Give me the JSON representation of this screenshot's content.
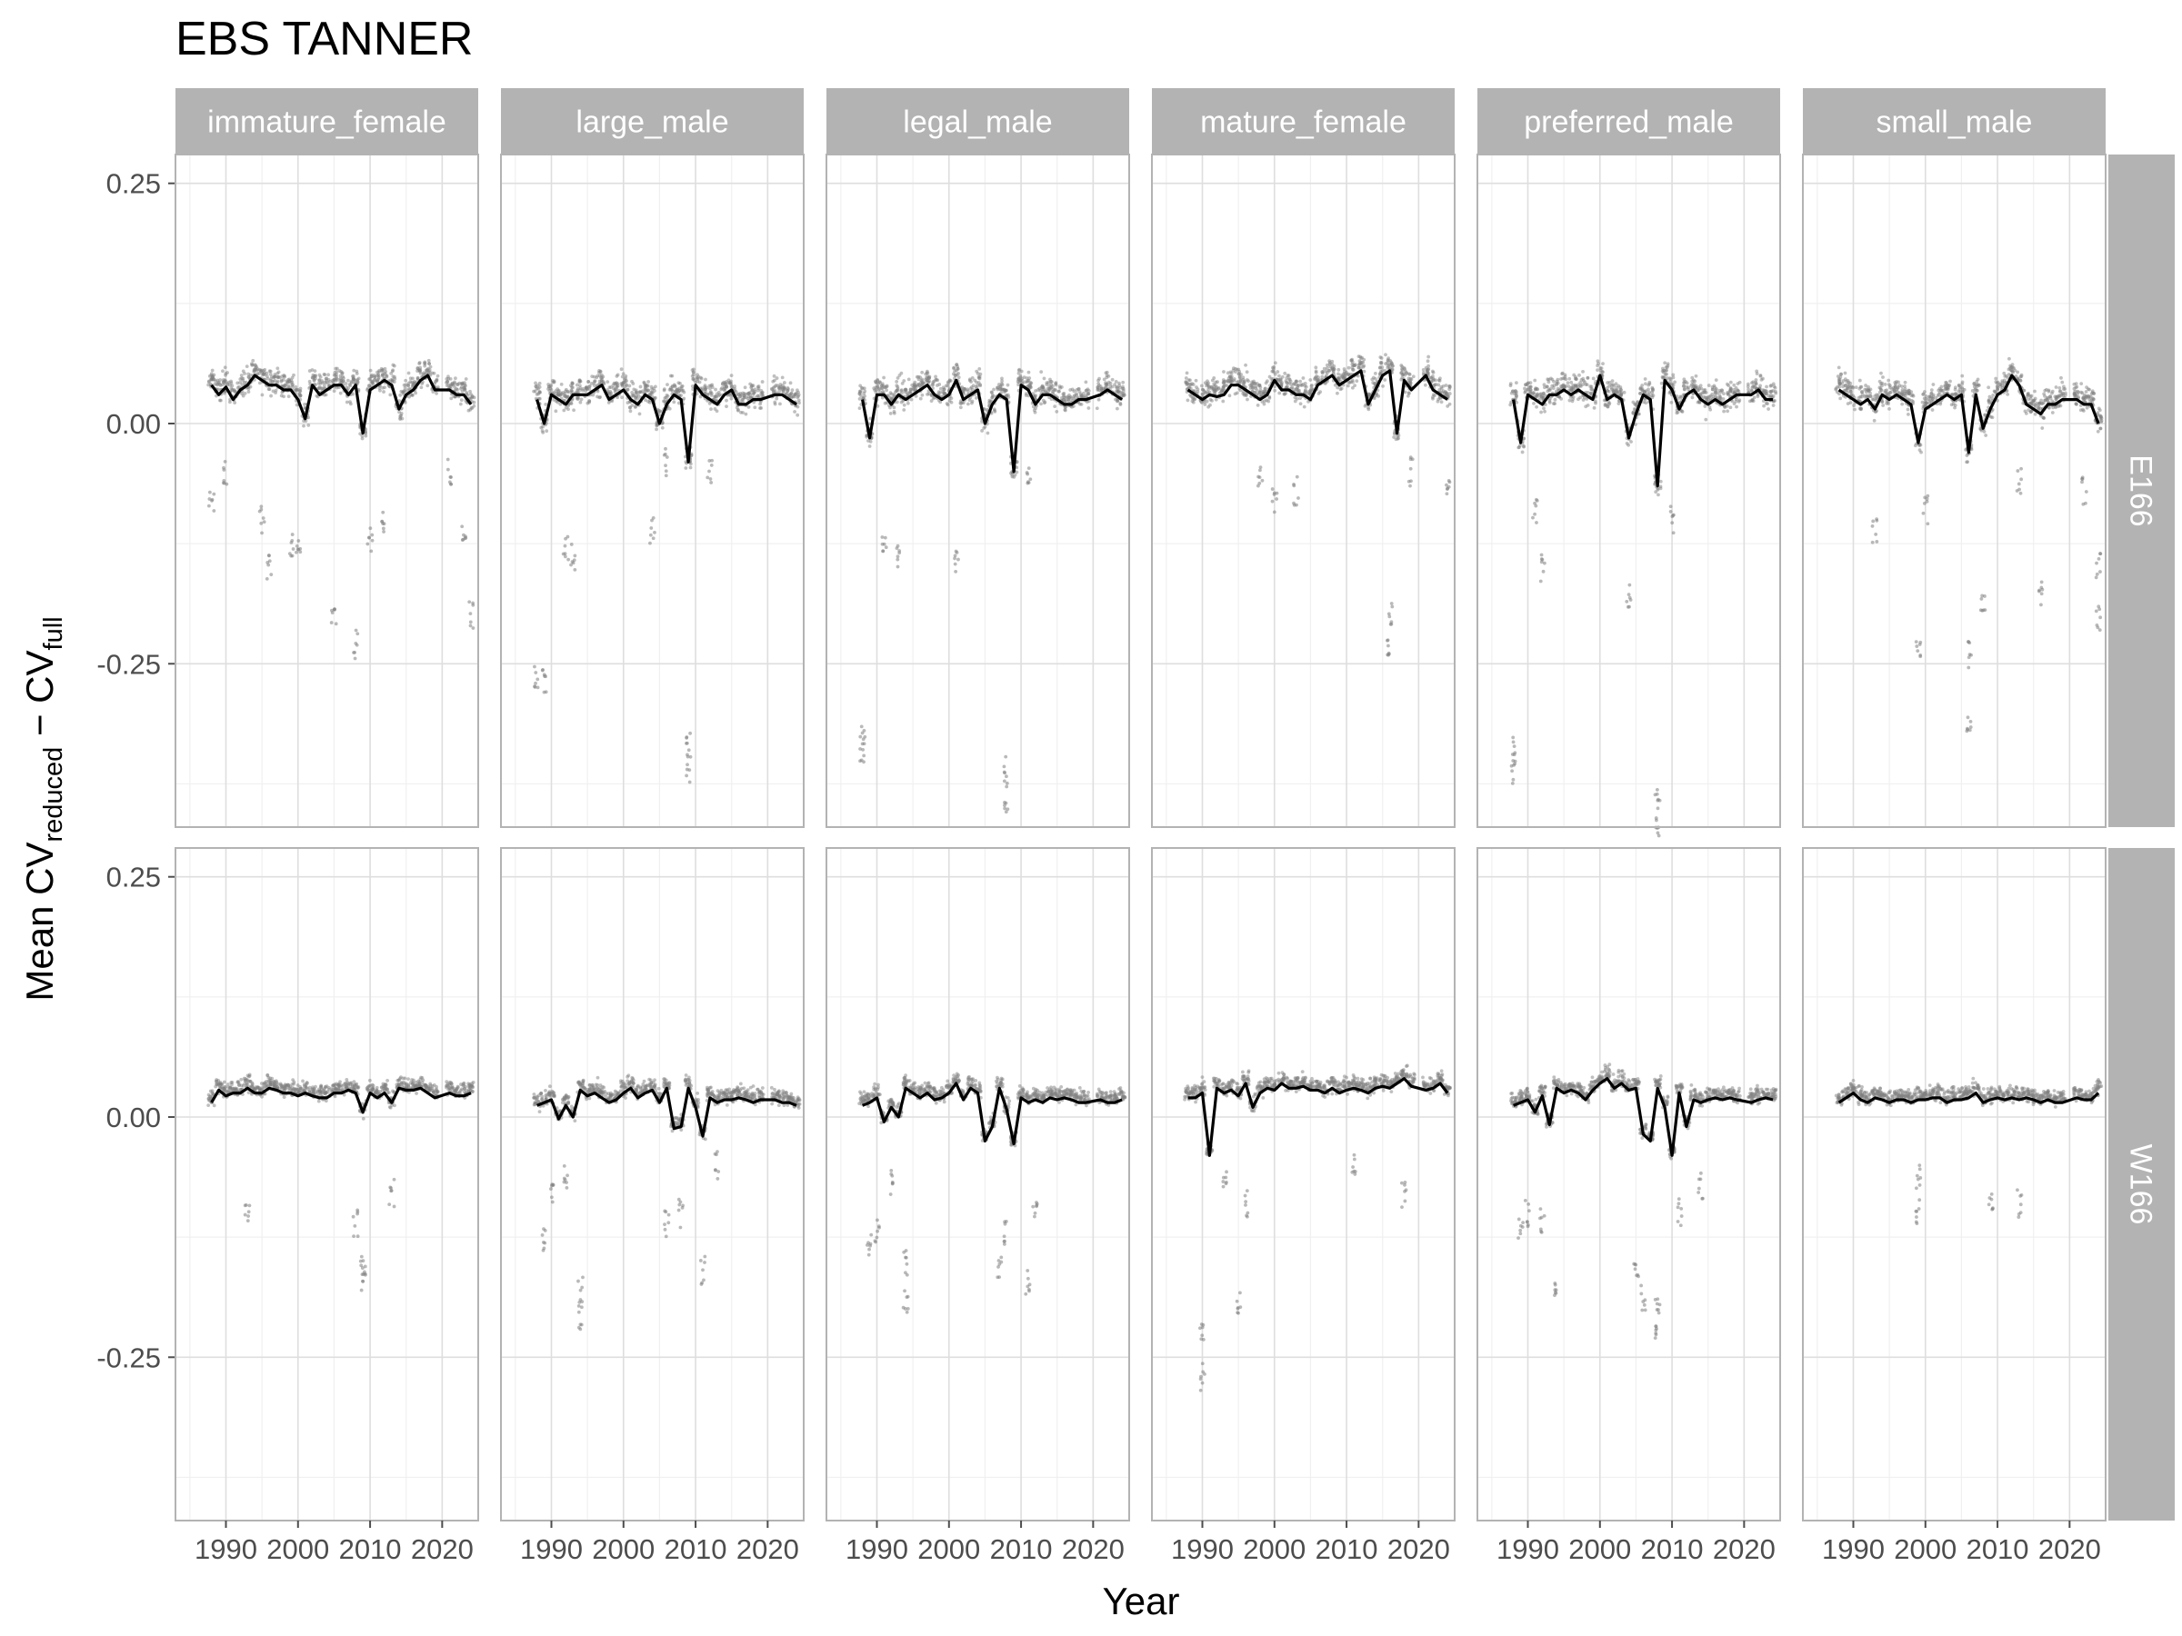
{
  "chart_data": {
    "type": "scatter",
    "title": "EBS TANNER",
    "xlabel": "Year",
    "ylabel": {
      "prefix": "Mean CV",
      "sub1": "reduced",
      "mid": " − CV",
      "sub2": "full"
    },
    "xlim": [
      1983,
      2025
    ],
    "ylim": [
      -0.42,
      0.28
    ],
    "x_ticks": [
      1990,
      2000,
      2010,
      2020
    ],
    "x_tick_labels": [
      "1990",
      "2000",
      "2010",
      "2020"
    ],
    "y_ticks": [
      0.25,
      0.0,
      -0.25
    ],
    "y_tick_labels": [
      "0.25",
      "0.00",
      "-0.25"
    ],
    "grid": true,
    "layout": "facet grid: columns = size class, rows = region",
    "columns": [
      "immature_female",
      "large_male",
      "legal_male",
      "mature_female",
      "preferred_male",
      "small_male"
    ],
    "rows": [
      "E166",
      "W166"
    ],
    "years": [
      1988,
      1989,
      1990,
      1991,
      1992,
      1993,
      1994,
      1995,
      1996,
      1997,
      1998,
      1999,
      2000,
      2001,
      2002,
      2003,
      2004,
      2005,
      2006,
      2007,
      2008,
      2009,
      2010,
      2011,
      2012,
      2013,
      2014,
      2015,
      2016,
      2017,
      2018,
      2019,
      2021,
      2022,
      2023,
      2024
    ],
    "series": [
      {
        "row": "E166",
        "col": "immature_female",
        "mean": [
          0.04,
          0.03,
          0.038,
          0.025,
          0.035,
          0.04,
          0.05,
          0.045,
          0.04,
          0.04,
          0.035,
          0.035,
          0.025,
          0.005,
          0.04,
          0.03,
          0.035,
          0.04,
          0.04,
          0.03,
          0.04,
          -0.01,
          0.035,
          0.04,
          0.045,
          0.04,
          0.015,
          0.03,
          0.035,
          0.045,
          0.05,
          0.035,
          0.035,
          0.03,
          0.03,
          0.02
        ],
        "outliers": [
          [
            1988,
            -0.08
          ],
          [
            1990,
            -0.05
          ],
          [
            1995,
            -0.1
          ],
          [
            1996,
            -0.15
          ],
          [
            1999,
            -0.13
          ],
          [
            2000,
            -0.13
          ],
          [
            2005,
            -0.2
          ],
          [
            2008,
            -0.23
          ],
          [
            2010,
            -0.12
          ],
          [
            2012,
            -0.1
          ],
          [
            2021,
            -0.05
          ],
          [
            2023,
            -0.12
          ],
          [
            2024,
            -0.2
          ]
        ]
      },
      {
        "row": "E166",
        "col": "large_male",
        "mean": [
          0.025,
          0.0,
          0.03,
          0.025,
          0.02,
          0.03,
          0.03,
          0.03,
          0.035,
          0.04,
          0.025,
          0.03,
          0.035,
          0.025,
          0.02,
          0.03,
          0.025,
          0.0,
          0.02,
          0.03,
          0.025,
          -0.04,
          0.04,
          0.03,
          0.025,
          0.02,
          0.03,
          0.035,
          0.02,
          0.02,
          0.025,
          0.025,
          0.03,
          0.03,
          0.025,
          0.02
        ],
        "outliers": [
          [
            1988,
            -0.26
          ],
          [
            1989,
            -0.27
          ],
          [
            1992,
            -0.13
          ],
          [
            1993,
            -0.14
          ],
          [
            2004,
            -0.11
          ],
          [
            2006,
            -0.04
          ],
          [
            2009,
            -0.33
          ],
          [
            2009,
            -0.36
          ],
          [
            2012,
            -0.05
          ]
        ]
      },
      {
        "row": "E166",
        "col": "legal_male",
        "mean": [
          0.025,
          -0.015,
          0.03,
          0.03,
          0.02,
          0.03,
          0.025,
          0.03,
          0.035,
          0.04,
          0.03,
          0.025,
          0.03,
          0.045,
          0.025,
          0.03,
          0.035,
          0.0,
          0.02,
          0.03,
          0.025,
          -0.05,
          0.04,
          0.035,
          0.02,
          0.03,
          0.03,
          0.025,
          0.02,
          0.02,
          0.025,
          0.025,
          0.03,
          0.035,
          0.03,
          0.025
        ],
        "outliers": [
          [
            1988,
            -0.33
          ],
          [
            1988,
            -0.34
          ],
          [
            1991,
            -0.12
          ],
          [
            1993,
            -0.14
          ],
          [
            2001,
            -0.14
          ],
          [
            2008,
            -0.36
          ],
          [
            2008,
            -0.39
          ],
          [
            2011,
            -0.05
          ]
        ]
      },
      {
        "row": "E166",
        "col": "mature_female",
        "mean": [
          0.035,
          0.03,
          0.025,
          0.03,
          0.028,
          0.03,
          0.04,
          0.04,
          0.035,
          0.03,
          0.025,
          0.03,
          0.045,
          0.035,
          0.035,
          0.03,
          0.03,
          0.025,
          0.04,
          0.045,
          0.05,
          0.04,
          0.045,
          0.05,
          0.055,
          0.02,
          0.035,
          0.05,
          0.055,
          -0.01,
          0.045,
          0.035,
          0.05,
          0.035,
          0.03,
          0.025
        ],
        "outliers": [
          [
            1998,
            -0.05
          ],
          [
            2000,
            -0.08
          ],
          [
            2003,
            -0.07
          ],
          [
            2016,
            -0.2
          ],
          [
            2016,
            -0.24
          ],
          [
            2019,
            -0.05
          ],
          [
            2024,
            -0.07
          ]
        ]
      },
      {
        "row": "E166",
        "col": "preferred_male",
        "mean": [
          0.025,
          -0.02,
          0.03,
          0.025,
          0.02,
          0.03,
          0.03,
          0.035,
          0.03,
          0.035,
          0.03,
          0.025,
          0.05,
          0.025,
          0.03,
          0.025,
          -0.015,
          0.01,
          0.03,
          0.025,
          -0.065,
          0.045,
          0.035,
          0.015,
          0.03,
          0.035,
          0.025,
          0.02,
          0.025,
          0.02,
          0.025,
          0.03,
          0.03,
          0.035,
          0.025,
          0.025
        ],
        "outliers": [
          [
            1988,
            -0.34
          ],
          [
            1988,
            -0.36
          ],
          [
            1991,
            -0.09
          ],
          [
            1992,
            -0.15
          ],
          [
            2004,
            -0.18
          ],
          [
            2008,
            -0.39
          ],
          [
            2008,
            -0.42
          ],
          [
            2010,
            -0.1
          ]
        ]
      },
      {
        "row": "E166",
        "col": "small_male",
        "mean": [
          0.035,
          0.03,
          0.025,
          0.02,
          0.025,
          0.015,
          0.03,
          0.025,
          0.03,
          0.025,
          0.02,
          -0.02,
          0.015,
          0.02,
          0.025,
          0.03,
          0.025,
          0.03,
          -0.03,
          0.03,
          -0.005,
          0.015,
          0.03,
          0.035,
          0.05,
          0.04,
          0.02,
          0.015,
          0.01,
          0.02,
          0.02,
          0.025,
          0.025,
          0.02,
          0.02,
          0.0
        ],
        "outliers": [
          [
            1993,
            -0.11
          ],
          [
            1999,
            -0.23
          ],
          [
            2000,
            -0.09
          ],
          [
            2006,
            -0.24
          ],
          [
            2006,
            -0.31
          ],
          [
            2008,
            -0.18
          ],
          [
            2013,
            -0.06
          ],
          [
            2016,
            -0.18
          ],
          [
            2022,
            -0.07
          ],
          [
            2024,
            -0.15
          ],
          [
            2024,
            -0.2
          ]
        ]
      },
      {
        "row": "W166",
        "col": "immature_female",
        "mean": [
          0.015,
          0.028,
          0.022,
          0.025,
          0.025,
          0.03,
          0.025,
          0.025,
          0.03,
          0.028,
          0.025,
          0.025,
          0.022,
          0.025,
          0.022,
          0.02,
          0.02,
          0.025,
          0.025,
          0.028,
          0.025,
          0.005,
          0.025,
          0.02,
          0.025,
          0.015,
          0.03,
          0.028,
          0.028,
          0.03,
          0.025,
          0.02,
          0.025,
          0.022,
          0.022,
          0.025
        ],
        "outliers": [
          [
            1993,
            -0.1
          ],
          [
            2008,
            -0.11
          ],
          [
            2009,
            -0.16
          ],
          [
            2009,
            -0.17
          ],
          [
            2013,
            -0.08
          ]
        ]
      },
      {
        "row": "W166",
        "col": "large_male",
        "mean": [
          0.012,
          0.015,
          0.018,
          -0.002,
          0.012,
          0.0,
          0.028,
          0.022,
          0.025,
          0.02,
          0.015,
          0.018,
          0.025,
          0.03,
          0.02,
          0.025,
          0.028,
          0.015,
          0.03,
          -0.012,
          -0.01,
          0.03,
          0.01,
          -0.02,
          0.02,
          0.015,
          0.018,
          0.018,
          0.02,
          0.018,
          0.015,
          0.018,
          0.018,
          0.015,
          0.015,
          0.012
        ],
        "outliers": [
          [
            1989,
            -0.13
          ],
          [
            1990,
            -0.08
          ],
          [
            1992,
            -0.06
          ],
          [
            1994,
            -0.18
          ],
          [
            1994,
            -0.21
          ],
          [
            2006,
            -0.11
          ],
          [
            2008,
            -0.1
          ],
          [
            2011,
            -0.16
          ],
          [
            2013,
            -0.05
          ]
        ]
      },
      {
        "row": "W166",
        "col": "legal_male",
        "mean": [
          0.012,
          0.015,
          0.02,
          -0.005,
          0.01,
          0.0,
          0.03,
          0.025,
          0.02,
          0.025,
          0.018,
          0.02,
          0.025,
          0.035,
          0.018,
          0.03,
          0.025,
          -0.025,
          -0.01,
          0.03,
          0.008,
          -0.028,
          0.02,
          0.015,
          0.018,
          0.015,
          0.02,
          0.018,
          0.02,
          0.018,
          0.015,
          0.015,
          0.018,
          0.015,
          0.015,
          0.018
        ],
        "outliers": [
          [
            1989,
            -0.13
          ],
          [
            1990,
            -0.12
          ],
          [
            1992,
            -0.07
          ],
          [
            1994,
            -0.15
          ],
          [
            1994,
            -0.19
          ],
          [
            2007,
            -0.16
          ],
          [
            2008,
            -0.12
          ],
          [
            2011,
            -0.17
          ],
          [
            2012,
            -0.1
          ]
        ]
      },
      {
        "row": "W166",
        "col": "mature_female",
        "mean": [
          0.02,
          0.02,
          0.025,
          -0.04,
          0.03,
          0.025,
          0.028,
          0.022,
          0.035,
          0.01,
          0.025,
          0.03,
          0.028,
          0.035,
          0.03,
          0.03,
          0.032,
          0.028,
          0.028,
          0.025,
          0.03,
          0.025,
          0.028,
          0.03,
          0.028,
          0.025,
          0.03,
          0.032,
          0.03,
          0.035,
          0.04,
          0.032,
          0.028,
          0.03,
          0.035,
          0.025
        ],
        "outliers": [
          [
            1990,
            -0.22
          ],
          [
            1990,
            -0.27
          ],
          [
            1993,
            -0.07
          ],
          [
            1995,
            -0.19
          ],
          [
            1996,
            -0.09
          ],
          [
            2011,
            -0.05
          ],
          [
            2018,
            -0.08
          ]
        ]
      },
      {
        "row": "W166",
        "col": "preferred_male",
        "mean": [
          0.012,
          0.015,
          0.018,
          0.005,
          0.022,
          -0.008,
          0.03,
          0.025,
          0.028,
          0.025,
          0.018,
          0.028,
          0.035,
          0.04,
          0.03,
          0.035,
          0.028,
          0.03,
          -0.018,
          -0.025,
          0.03,
          0.01,
          -0.04,
          0.025,
          -0.01,
          0.018,
          0.015,
          0.018,
          0.02,
          0.018,
          0.02,
          0.018,
          0.015,
          0.018,
          0.02,
          0.018
        ],
        "outliers": [
          [
            1989,
            -0.12
          ],
          [
            1990,
            -0.1
          ],
          [
            1992,
            -0.11
          ],
          [
            1994,
            -0.18
          ],
          [
            2005,
            -0.16
          ],
          [
            2006,
            -0.19
          ],
          [
            2008,
            -0.2
          ],
          [
            2008,
            -0.22
          ],
          [
            2011,
            -0.1
          ],
          [
            2014,
            -0.07
          ]
        ]
      },
      {
        "row": "W166",
        "col": "small_male",
        "mean": [
          0.015,
          0.02,
          0.025,
          0.018,
          0.015,
          0.02,
          0.018,
          0.015,
          0.018,
          0.018,
          0.015,
          0.018,
          0.018,
          0.02,
          0.02,
          0.015,
          0.018,
          0.018,
          0.02,
          0.025,
          0.015,
          0.018,
          0.02,
          0.018,
          0.02,
          0.018,
          0.02,
          0.018,
          0.015,
          0.018,
          0.015,
          0.015,
          0.02,
          0.018,
          0.018,
          0.025
        ],
        "outliers": [
          [
            1999,
            -0.06
          ],
          [
            1999,
            -0.1
          ],
          [
            2009,
            -0.09
          ],
          [
            2013,
            -0.09
          ]
        ]
      }
    ]
  }
}
